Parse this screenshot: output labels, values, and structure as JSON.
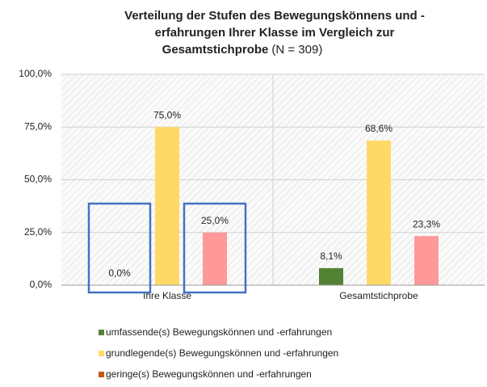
{
  "chart_data": {
    "type": "bar",
    "title_lines": [
      "Verteilung der Stufen des Bewegungskönnens und -",
      "erfahrungen Ihrer Klasse im Vergleich zur",
      "Gesamtstichprobe"
    ],
    "title_note": "(N = 309)",
    "categories": [
      "Ihre Klasse",
      "Gesamtstichprobe"
    ],
    "series": [
      {
        "name": "umfassende(s) Bewegungskönnen und -erfahrungen",
        "color": "#548235",
        "legend_color": "#548235",
        "values": [
          0,
          8.1
        ],
        "value_labels": [
          "0,0%",
          "8,1%"
        ]
      },
      {
        "name": "grundlegende(s) Bewegungskönnen und -erfahrungen",
        "color": "#ffd966",
        "legend_color": "#ffd966",
        "values": [
          75,
          68.6
        ],
        "value_labels": [
          "75,0%",
          "68,6%"
        ]
      },
      {
        "name": "geringe(s) Bewegungskönnen und -erfahrungen",
        "color": "#ff9999",
        "legend_color": "#c55a11",
        "values": [
          25,
          23.3
        ],
        "value_labels": [
          "25,0%",
          "23,3%"
        ]
      }
    ],
    "ylim": [
      0,
      100
    ],
    "yticks": [
      {
        "value": 0,
        "label": "0,0%"
      },
      {
        "value": 25,
        "label": "25,0%"
      },
      {
        "value": 50,
        "label": "50,0%"
      },
      {
        "value": 75,
        "label": "75,0%"
      },
      {
        "value": 100,
        "label": "100,0%"
      }
    ],
    "grid": true
  }
}
